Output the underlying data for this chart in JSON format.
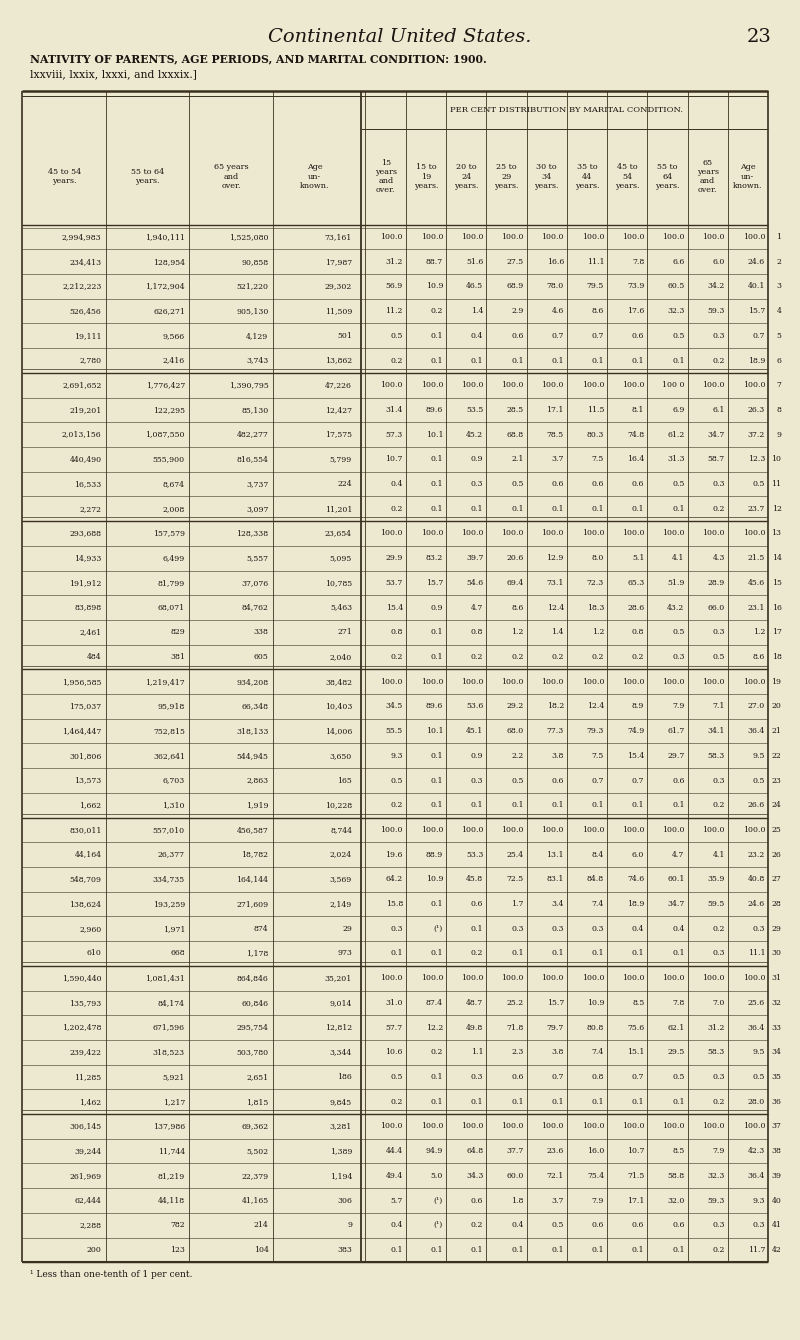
{
  "page_title_italic": "Continental United States.",
  "page_number": "23",
  "table_title": "NATIVITY OF PARENTS, AGE PERIODS, AND MARITAL CONDITION: 1900.",
  "subtitle": "lxxviii, lxxix, lxxxi, and lxxxix.]",
  "header_right_top": "PER CENT DISTRIBUTION BY MARITAL CONDITION.",
  "footnote": "¹ Less than one-tenth of 1 per cent.",
  "bg_color": "#ede8d0",
  "line_color": "#3a3020",
  "text_color": "#1a1510",
  "rows": [
    [
      "2,994,983",
      "1,940,111",
      "1,525,080",
      "73,161",
      "100.0",
      "100.0",
      "100.0",
      "100.0",
      "100.0",
      "100.0",
      "100.0",
      "100.0",
      "100.0",
      "100.0",
      "1"
    ],
    [
      "234,413",
      "128,954",
      "90,858",
      "17,987",
      "31.2",
      "88.7",
      "51.6",
      "27.5",
      "16.6",
      "11.1",
      "7.8",
      "6.6",
      "6.0",
      "24.6",
      "2"
    ],
    [
      "2,212,223",
      "1,172,904",
      "521,220",
      "29,302",
      "56.9",
      "10.9",
      "46.5",
      "68.9",
      "78.0",
      "79.5",
      "73.9",
      "60.5",
      "34.2",
      "40.1",
      "3"
    ],
    [
      "526,456",
      "626,271",
      "905,130",
      "11,509",
      "11.2",
      "0.2",
      "1.4",
      "2.9",
      "4.6",
      "8.6",
      "17.6",
      "32.3",
      "59.3",
      "15.7",
      "4"
    ],
    [
      "19,111",
      "9,566",
      "4,129",
      "501",
      "0.5",
      "0.1",
      "0.4",
      "0.6",
      "0.7",
      "0.7",
      "0.6",
      "0.5",
      "0.3",
      "0.7",
      "5"
    ],
    [
      "2,780",
      "2,416",
      "3,743",
      "13,862",
      "0.2",
      "0.1",
      "0.1",
      "0.1",
      "0.1",
      "0.1",
      "0.1",
      "0.1",
      "0.2",
      "18.9",
      "6"
    ],
    [
      "2,691,652",
      "1,776,427",
      "1,390,795",
      "47,226",
      "100.0",
      "100.0",
      "100.0",
      "100.0",
      "100.0",
      "100.0",
      "100.0",
      "100 0",
      "100.0",
      "100.0",
      "7"
    ],
    [
      "219,201",
      "122,295",
      "85,130",
      "12,427",
      "31.4",
      "89.6",
      "53.5",
      "28.5",
      "17.1",
      "11.5",
      "8.1",
      "6.9",
      "6.1",
      "26.3",
      "8"
    ],
    [
      "2,013,156",
      "1,087,550",
      "482,277",
      "17,575",
      "57.3",
      "10.1",
      "45.2",
      "68.8",
      "78.5",
      "80.3",
      "74.8",
      "61.2",
      "34.7",
      "37.2",
      "9"
    ],
    [
      "440,490",
      "555,900",
      "816,554",
      "5,799",
      "10.7",
      "0.1",
      "0.9",
      "2.1",
      "3.7",
      "7.5",
      "16.4",
      "31.3",
      "58.7",
      "12.3",
      "10"
    ],
    [
      "16,533",
      "8,674",
      "3,737",
      "224",
      "0.4",
      "0.1",
      "0.3",
      "0.5",
      "0.6",
      "0.6",
      "0.6",
      "0.5",
      "0.3",
      "0.5",
      "11"
    ],
    [
      "2,272",
      "2,008",
      "3,097",
      "11,201",
      "0.2",
      "0.1",
      "0.1",
      "0.1",
      "0.1",
      "0.1",
      "0.1",
      "0.1",
      "0.2",
      "23.7",
      "12"
    ],
    [
      "293,688",
      "157,579",
      "128,338",
      "23,654",
      "100.0",
      "100.0",
      "100.0",
      "100.0",
      "100.0",
      "100.0",
      "100.0",
      "100.0",
      "100.0",
      "100.0",
      "13"
    ],
    [
      "14,933",
      "6,499",
      "5,557",
      "5,095",
      "29.9",
      "83.2",
      "39.7",
      "20.6",
      "12.9",
      "8.0",
      "5.1",
      "4.1",
      "4.3",
      "21.5",
      "14"
    ],
    [
      "191,912",
      "81,799",
      "37,076",
      "10,785",
      "53.7",
      "15.7",
      "54.6",
      "69.4",
      "73.1",
      "72.3",
      "65.3",
      "51.9",
      "28.9",
      "45.6",
      "15"
    ],
    [
      "83,898",
      "68,071",
      "84,762",
      "5,463",
      "15.4",
      "0.9",
      "4.7",
      "8.6",
      "12.4",
      "18.3",
      "28.6",
      "43.2",
      "66.0",
      "23.1",
      "16"
    ],
    [
      "2,461",
      "829",
      "338",
      "271",
      "0.8",
      "0.1",
      "0.8",
      "1.2",
      "1.4",
      "1.2",
      "0.8",
      "0.5",
      "0.3",
      "1.2",
      "17"
    ],
    [
      "484",
      "381",
      "605",
      "2,040",
      "0.2",
      "0.1",
      "0.2",
      "0.2",
      "0.2",
      "0.2",
      "0.2",
      "0.3",
      "0.5",
      "8.6",
      "18"
    ],
    [
      "1,956,585",
      "1,219,417",
      "934,208",
      "38,482",
      "100.0",
      "100.0",
      "100.0",
      "100.0",
      "100.0",
      "100.0",
      "100.0",
      "100.0",
      "100.0",
      "100.0",
      "19"
    ],
    [
      "175,037",
      "95,918",
      "66,348",
      "10,403",
      "34.5",
      "89.6",
      "53.6",
      "29.2",
      "18.2",
      "12.4",
      "8.9",
      "7.9",
      "7.1",
      "27.0",
      "20"
    ],
    [
      "1,464,447",
      "752,815",
      "318,133",
      "14,006",
      "55.5",
      "10.1",
      "45.1",
      "68.0",
      "77.3",
      "79.3",
      "74.9",
      "61.7",
      "34.1",
      "36.4",
      "21"
    ],
    [
      "301,806",
      "362,641",
      "544,945",
      "3,650",
      "9.3",
      "0.1",
      "0.9",
      "2.2",
      "3.8",
      "7.5",
      "15.4",
      "29.7",
      "58.3",
      "9.5",
      "22"
    ],
    [
      "13,573",
      "6,703",
      "2,863",
      "165",
      "0.5",
      "0.1",
      "0.3",
      "0.5",
      "0.6",
      "0.7",
      "0.7",
      "0.6",
      "0.3",
      "0.5",
      "23"
    ],
    [
      "1,662",
      "1,310",
      "1,919",
      "10,228",
      "0.2",
      "0.1",
      "0.1",
      "0.1",
      "0.1",
      "0.1",
      "0.1",
      "0.1",
      "0.2",
      "26.6",
      "24"
    ],
    [
      "830,011",
      "557,010",
      "456,587",
      "8,744",
      "100.0",
      "100.0",
      "100.0",
      "100.0",
      "100.0",
      "100.0",
      "100.0",
      "100.0",
      "100.0",
      "100.0",
      "25"
    ],
    [
      "44,164",
      "26,377",
      "18,782",
      "2,024",
      "19.6",
      "88.9",
      "53.3",
      "25.4",
      "13.1",
      "8.4",
      "6.0",
      "4.7",
      "4.1",
      "23.2",
      "26"
    ],
    [
      "548,709",
      "334,735",
      "164,144",
      "3,569",
      "64.2",
      "10.9",
      "45.8",
      "72.5",
      "83.1",
      "84.8",
      "74.6",
      "60.1",
      "35.9",
      "40.8",
      "27"
    ],
    [
      "138,624",
      "193,259",
      "271,609",
      "2,149",
      "15.8",
      "0.1",
      "0.6",
      "1.7",
      "3.4",
      "7.4",
      "18.9",
      "34.7",
      "59.5",
      "24.6",
      "28"
    ],
    [
      "2,960",
      "1,971",
      "874",
      "29",
      "0.3",
      "(¹)",
      "0.1",
      "0.3",
      "0.3",
      "0.3",
      "0.4",
      "0.4",
      "0.2",
      "0.3",
      "29"
    ],
    [
      "610",
      "668",
      "1,178",
      "973",
      "0.1",
      "0.1",
      "0.2",
      "0.1",
      "0.1",
      "0.1",
      "0.1",
      "0.1",
      "0.3",
      "11.1",
      "30"
    ],
    [
      "1,590,440",
      "1,081,431",
      "864,846",
      "35,201",
      "100.0",
      "100.0",
      "100.0",
      "100.0",
      "100.0",
      "100.0",
      "100.0",
      "100.0",
      "100.0",
      "100.0",
      "31"
    ],
    [
      "135,793",
      "84,174",
      "60,846",
      "9,014",
      "31.0",
      "87.4",
      "48.7",
      "25.2",
      "15.7",
      "10.9",
      "8.5",
      "7.8",
      "7.0",
      "25.6",
      "32"
    ],
    [
      "1,202,478",
      "671,596",
      "295,754",
      "12,812",
      "57.7",
      "12.2",
      "49.8",
      "71.8",
      "79.7",
      "80.8",
      "75.6",
      "62.1",
      "31.2",
      "36.4",
      "33"
    ],
    [
      "239,422",
      "318,523",
      "503,780",
      "3,344",
      "10.6",
      "0.2",
      "1.1",
      "2.3",
      "3.8",
      "7.4",
      "15.1",
      "29.5",
      "58.3",
      "9.5",
      "34"
    ],
    [
      "11,285",
      "5,921",
      "2,651",
      "186",
      "0.5",
      "0.1",
      "0.3",
      "0.6",
      "0.7",
      "0.8",
      "0.7",
      "0.5",
      "0.3",
      "0.5",
      "35"
    ],
    [
      "1,462",
      "1,217",
      "1,815",
      "9,845",
      "0.2",
      "0.1",
      "0.1",
      "0.1",
      "0.1",
      "0.1",
      "0.1",
      "0.1",
      "0.2",
      "28.0",
      "36"
    ],
    [
      "306,145",
      "137,986",
      "69,362",
      "3,281",
      "100.0",
      "100.0",
      "100.0",
      "100.0",
      "100.0",
      "100.0",
      "100.0",
      "100.0",
      "100.0",
      "100.0",
      "37"
    ],
    [
      "39,244",
      "11,744",
      "5,502",
      "1,389",
      "44.4",
      "94.9",
      "64.8",
      "37.7",
      "23.6",
      "16.0",
      "10.7",
      "8.5",
      "7.9",
      "42.3",
      "38"
    ],
    [
      "261,969",
      "81,219",
      "22,379",
      "1,194",
      "49.4",
      "5.0",
      "34.3",
      "60.0",
      "72.1",
      "75.4",
      "71.5",
      "58.8",
      "32.3",
      "36.4",
      "39"
    ],
    [
      "62,444",
      "44,118",
      "41,165",
      "306",
      "5.7",
      "(¹)",
      "0.6",
      "1.8",
      "3.7",
      "7.9",
      "17.1",
      "32.0",
      "59.3",
      "9.3",
      "40"
    ],
    [
      "2,288",
      "782",
      "214",
      "9",
      "0.4",
      "(¹)",
      "0.2",
      "0.4",
      "0.5",
      "0.6",
      "0.6",
      "0.6",
      "0.3",
      "0.3",
      "41"
    ],
    [
      "200",
      "123",
      "104",
      "383",
      "0.1",
      "0.1",
      "0.1",
      "0.1",
      "0.1",
      "0.1",
      "0.1",
      "0.1",
      "0.2",
      "11.7",
      "42"
    ]
  ],
  "separator_rows": [
    0,
    6,
    12,
    18,
    24,
    30,
    36
  ],
  "col_headers_left": [
    "45 to 54\nyears.",
    "55 to 64\nyears.",
    "65 years\nand\nover.",
    "Age\nun-\nknown."
  ],
  "col_headers_right": [
    "15\nyears\nand\nover.",
    "15 to\n19\nyears.",
    "20 to\n24\nyears.",
    "25 to\n29\nyears.",
    "30 to\n34\nyears.",
    "35 to\n44\nyears.",
    "45 to\n54\nyears.",
    "55 to\n64\nyears.",
    "65\nyears\nand\nover.",
    "Age\nun-\nknown."
  ]
}
